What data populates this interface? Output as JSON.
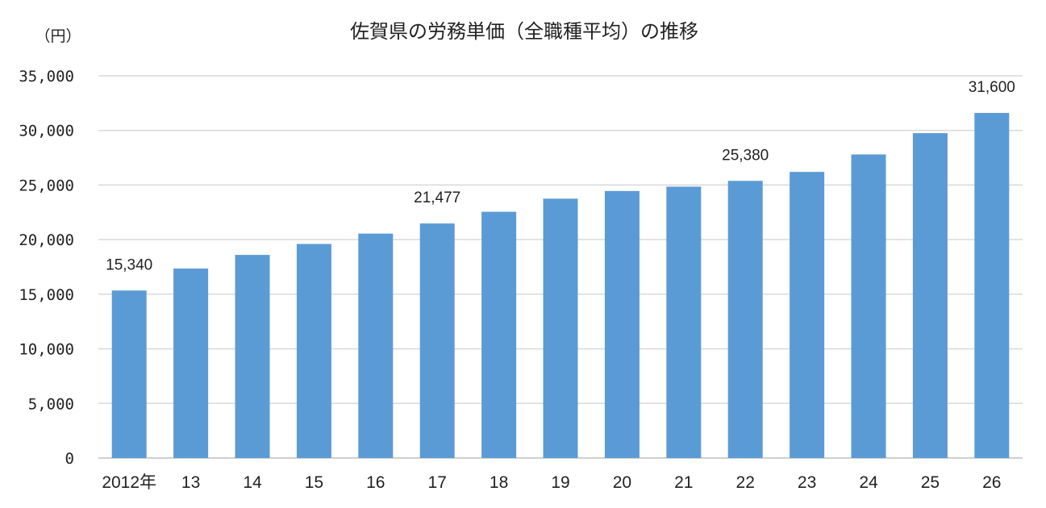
{
  "chart_data": {
    "type": "bar",
    "title": "佐賀県の労務単価（全職種平均）の推移",
    "ylabel": "（円）",
    "xlabel": "",
    "categories": [
      "2012年",
      "13",
      "14",
      "15",
      "16",
      "17",
      "18",
      "19",
      "20",
      "21",
      "22",
      "23",
      "24",
      "25",
      "26"
    ],
    "values": [
      15340,
      17350,
      18600,
      19600,
      20550,
      21477,
      22550,
      23750,
      24450,
      24850,
      25380,
      26200,
      27800,
      29750,
      31600
    ],
    "ylim": [
      0,
      35000
    ],
    "yticks": [
      "0",
      "5,000",
      "10,000",
      "15,000",
      "20,000",
      "25,000",
      "30,000",
      "35,000"
    ],
    "data_labels": [
      {
        "index": 0,
        "text": "15,340"
      },
      {
        "index": 5,
        "text": "21,477"
      },
      {
        "index": 10,
        "text": "25,380"
      },
      {
        "index": 14,
        "text": "31,600"
      }
    ],
    "grid": true,
    "bar_color": "#5b9bd5"
  }
}
